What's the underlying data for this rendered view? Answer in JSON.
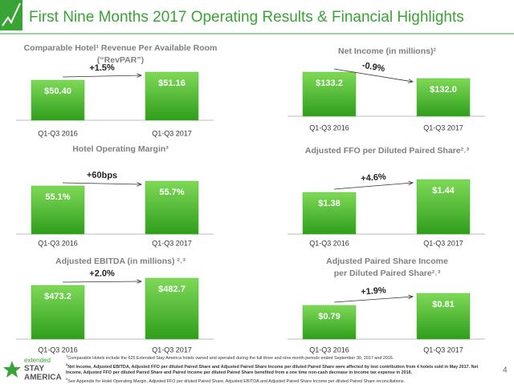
{
  "slide": {
    "title": "First Nine Months 2017 Operating Results & Financial Highlights",
    "page": "4",
    "logo": [
      "extended",
      "STAY",
      "AMERICA"
    ],
    "footnotes": [
      {
        "marker": "1",
        "text": "Comparable Hotels include the 625 Extended Stay America hotels owned and operated during the full three and nine month periods ended September 30, 2017 and 2016."
      },
      {
        "marker": "2",
        "text": "Net Income, Adjusted EBITDA, Adjusted FFO per diluted Paired Share and Adjusted Paired Share Income per diluted Paired Share were affected by lost contribution from 4 hotels sold in May 2017. Net Income, Adjusted FFO per diluted Paired Share and Paired Income per diluted Paired Share benefited from a one time non-cash decrease in income tax expense in 2016."
      },
      {
        "marker": "3",
        "text": "See Appendix for Hotel Operating Margin, Adjusted FFO per diluted Paired Share, Adjusted EBITDA and Adjusted Paired Share Income per diluted Paired Share reconciliations."
      }
    ]
  },
  "chart_data": [
    {
      "type": "bar",
      "title": [
        "Comparable Hotel¹ Revenue Per Available Room",
        "(“RevPAR”)"
      ],
      "categories": [
        "Q1-Q3 2016",
        "Q1-Q3 2017"
      ],
      "values": [
        50.4,
        51.16
      ],
      "value_labels": [
        "$50.40",
        "$51.16"
      ],
      "annotation": "+1.5%",
      "color": "#4cbb2a"
    },
    {
      "type": "bar",
      "title": [
        "Net Income (in millions)²"
      ],
      "categories": [
        "Q1-Q3 2016",
        "Q1-Q3 2017"
      ],
      "values": [
        133.2,
        132.0
      ],
      "value_labels": [
        "$133.2",
        "$132.0"
      ],
      "annotation": "-0.9%",
      "color": "#4cbb2a"
    },
    {
      "type": "bar",
      "title": [
        "Hotel Operating Margin³"
      ],
      "categories": [
        "Q1-Q3 2016",
        "Q1-Q3 2017"
      ],
      "values": [
        55.1,
        55.7
      ],
      "value_labels": [
        "55.1%",
        "55.7%"
      ],
      "annotation": "+60bps",
      "color": "#4cbb2a"
    },
    {
      "type": "bar",
      "title": [
        "Adjusted FFO per Diluted Paired Share²˒³"
      ],
      "categories": [
        "Q1-Q3 2016",
        "Q1-Q3 2017"
      ],
      "values": [
        1.38,
        1.44
      ],
      "value_labels": [
        "$1.38",
        "$1.44"
      ],
      "annotation": "+4.6%",
      "color": "#4cbb2a"
    },
    {
      "type": "bar",
      "title": [
        "Adjusted EBITDA (in millions) ²˒³"
      ],
      "categories": [
        "Q1-Q3 2016",
        "Q1-Q3 2017"
      ],
      "values": [
        473.2,
        482.7
      ],
      "value_labels": [
        "$473.2",
        "$482.7"
      ],
      "annotation": "+2.0%",
      "color": "#4cbb2a"
    },
    {
      "type": "bar",
      "title": [
        "Adjusted Paired Share Income",
        "per Diluted Paired Share²˒³"
      ],
      "categories": [
        "Q1-Q3 2016",
        "Q1-Q3 2017"
      ],
      "values": [
        0.79,
        0.81
      ],
      "value_labels": [
        "$0.79",
        "$0.81"
      ],
      "annotation": "+1.9%",
      "color": "#4cbb2a"
    }
  ]
}
